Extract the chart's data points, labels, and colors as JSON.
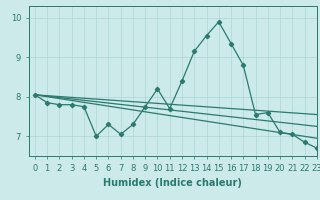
{
  "title": "",
  "xlabel": "Humidex (Indice chaleur)",
  "ylabel": "",
  "background_color": "#cceaea",
  "line_color": "#2a7a6e",
  "xlim": [
    -0.5,
    23
  ],
  "ylim": [
    6.5,
    10.3
  ],
  "yticks": [
    7,
    8,
    9,
    10
  ],
  "xticks": [
    0,
    1,
    2,
    3,
    4,
    5,
    6,
    7,
    8,
    9,
    10,
    11,
    12,
    13,
    14,
    15,
    16,
    17,
    18,
    19,
    20,
    21,
    22,
    23
  ],
  "main_series": {
    "x": [
      0,
      1,
      2,
      3,
      4,
      5,
      6,
      7,
      8,
      9,
      10,
      11,
      12,
      13,
      14,
      15,
      16,
      17,
      18,
      19,
      20,
      21,
      22,
      23
    ],
    "y": [
      8.05,
      7.85,
      7.8,
      7.8,
      7.75,
      7.0,
      7.3,
      7.05,
      7.3,
      7.75,
      8.2,
      7.7,
      8.4,
      9.15,
      9.55,
      9.9,
      9.35,
      8.8,
      7.55,
      7.6,
      7.1,
      7.05,
      6.85,
      6.7
    ]
  },
  "straight_lines": [
    {
      "x0": 0,
      "y0": 8.05,
      "x1": 23,
      "y1": 7.55
    },
    {
      "x0": 0,
      "y0": 8.05,
      "x1": 23,
      "y1": 7.25
    },
    {
      "x0": 0,
      "y0": 8.05,
      "x1": 23,
      "y1": 6.95
    }
  ],
  "grid_color": "#aed4d4",
  "tick_fontsize": 6,
  "label_fontsize": 7,
  "marker": "D",
  "markersize": 2.2,
  "linewidth": 0.9
}
